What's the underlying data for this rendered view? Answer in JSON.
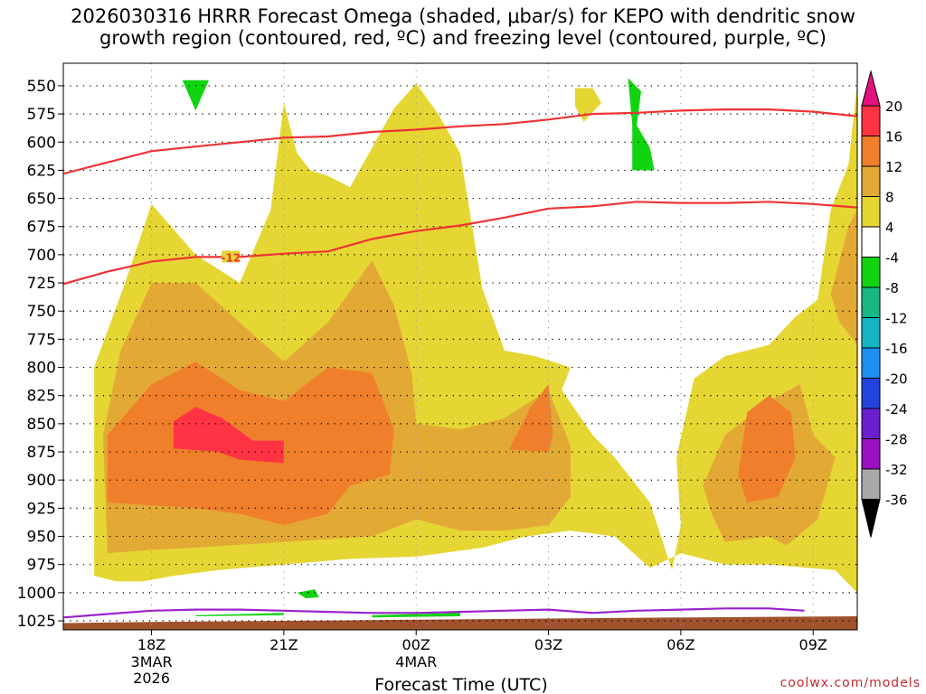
{
  "chart_data": {
    "type": "heatmap",
    "title_line1": "2026030316 HRRR Forecast Omega (shaded, μbar/s) for KEPO with dendritic snow",
    "title_line2": "growth region (contoured, red, ºC) and freezing level (contoured, purple, ºC)",
    "xlabel": "Forecast Time (UTC)",
    "credit": "coolwx.com/models",
    "x_range_hours": [
      -2.0,
      16.0
    ],
    "x_ticks": [
      {
        "hour": 0,
        "label": "18Z",
        "sub": [
          "3MAR",
          "2026"
        ]
      },
      {
        "hour": 3,
        "label": "21Z",
        "sub": []
      },
      {
        "hour": 6,
        "label": "00Z",
        "sub": [
          "4MAR"
        ]
      },
      {
        "hour": 9,
        "label": "03Z",
        "sub": []
      },
      {
        "hour": 12,
        "label": "06Z",
        "sub": []
      },
      {
        "hour": 15,
        "label": "09Z",
        "sub": []
      }
    ],
    "y_scale": "pressure (hPa), top 530 to bottom 1033",
    "y_range_hpa": [
      530,
      1033
    ],
    "y_ticks": [
      550,
      575,
      600,
      625,
      650,
      675,
      700,
      725,
      750,
      775,
      800,
      825,
      850,
      875,
      900,
      925,
      950,
      975,
      1000,
      1025
    ],
    "colorbar": {
      "labels": [
        "20",
        "16",
        "12",
        "8",
        "4",
        "-4",
        "-8",
        "-12",
        "-16",
        "-20",
        "-24",
        "-28",
        "-32",
        "-36"
      ],
      "bins": [
        {
          "color": "#ff3344"
        },
        {
          "color": "#f07f2c"
        },
        {
          "color": "#e3a935"
        },
        {
          "color": "#e6d634"
        },
        {
          "color": "#ffffff"
        },
        {
          "color": "#11d411"
        },
        {
          "color": "#17b884"
        },
        {
          "color": "#14b4c4"
        },
        {
          "color": "#1e8ff0"
        },
        {
          "color": "#2244dd"
        },
        {
          "color": "#6a1fd0"
        },
        {
          "color": "#9b10c0"
        },
        {
          "color": "#a9a9a9"
        }
      ],
      "top_arrow_color": "#e3117e",
      "bottom_arrow_color": "#000000"
    },
    "contours": {
      "dendritic_growth": {
        "color": "#ee3333",
        "label": "-12",
        "upper": [
          [
            -2,
            628
          ],
          [
            -1,
            618
          ],
          [
            0,
            608
          ],
          [
            1,
            604
          ],
          [
            2,
            600
          ],
          [
            3,
            596
          ],
          [
            4,
            595
          ],
          [
            5,
            591
          ],
          [
            6,
            589
          ],
          [
            7,
            586
          ],
          [
            8,
            584
          ],
          [
            9,
            580
          ],
          [
            10,
            575
          ],
          [
            11,
            574
          ],
          [
            12,
            572
          ],
          [
            13,
            571
          ],
          [
            14,
            571
          ],
          [
            15,
            573
          ],
          [
            16,
            577
          ]
        ],
        "lower": [
          [
            -2,
            726
          ],
          [
            -1,
            715
          ],
          [
            0,
            706
          ],
          [
            1,
            702
          ],
          [
            2,
            702
          ],
          [
            3,
            699
          ],
          [
            4,
            697
          ],
          [
            5,
            686
          ],
          [
            6,
            679
          ],
          [
            7,
            674
          ],
          [
            8,
            667
          ],
          [
            9,
            659
          ],
          [
            10,
            657
          ],
          [
            11,
            653
          ],
          [
            12,
            654
          ],
          [
            13,
            654
          ],
          [
            14,
            653
          ],
          [
            15,
            655
          ],
          [
            16,
            658
          ]
        ]
      },
      "freezing_level": {
        "color": "#9922cc",
        "points": [
          [
            -2,
            1022
          ],
          [
            -1,
            1019
          ],
          [
            0,
            1016
          ],
          [
            1,
            1015
          ],
          [
            2,
            1015
          ],
          [
            3,
            1016
          ],
          [
            4,
            1017
          ],
          [
            5,
            1018
          ],
          [
            6,
            1018
          ],
          [
            7,
            1017
          ],
          [
            8,
            1016
          ],
          [
            9,
            1015
          ],
          [
            10,
            1018
          ],
          [
            11,
            1016
          ],
          [
            12,
            1015
          ],
          [
            13,
            1014
          ],
          [
            14,
            1014
          ],
          [
            14.8,
            1016
          ]
        ]
      }
    },
    "omega_regions": [
      {
        "bin": 3,
        "points": [
          [
            -1.3,
            985
          ],
          [
            -1.3,
            800
          ],
          [
            -0.6,
            725
          ],
          [
            0,
            655
          ],
          [
            1,
            700
          ],
          [
            2,
            725
          ],
          [
            2.7,
            660
          ],
          [
            3,
            565
          ],
          [
            3.3,
            610
          ],
          [
            3.6,
            625
          ],
          [
            4,
            630
          ],
          [
            4.5,
            640
          ],
          [
            5,
            605
          ],
          [
            5.5,
            570
          ],
          [
            6,
            548
          ],
          [
            6.5,
            575
          ],
          [
            7,
            610
          ],
          [
            7.5,
            730
          ],
          [
            8,
            785
          ],
          [
            8.7,
            790
          ],
          [
            9.5,
            800
          ],
          [
            9.3,
            820
          ],
          [
            10,
            860
          ],
          [
            10.5,
            880
          ],
          [
            11.3,
            920
          ],
          [
            11.8,
            980
          ],
          [
            12,
            940
          ],
          [
            11.9,
            880
          ],
          [
            12.3,
            810
          ],
          [
            13,
            790
          ],
          [
            14,
            780
          ],
          [
            14.6,
            755
          ],
          [
            15.1,
            740
          ],
          [
            15.4,
            660
          ],
          [
            15.8,
            620
          ],
          [
            16,
            548
          ],
          [
            16,
            1000
          ],
          [
            15.5,
            980
          ],
          [
            14,
            975
          ],
          [
            13,
            975
          ],
          [
            12,
            965
          ],
          [
            11.3,
            978
          ],
          [
            10.5,
            950
          ],
          [
            9.5,
            945
          ],
          [
            8.5,
            950
          ],
          [
            7.5,
            960
          ],
          [
            6,
            968
          ],
          [
            4.5,
            970
          ],
          [
            3,
            975
          ],
          [
            1.5,
            980
          ],
          [
            0.5,
            985
          ],
          [
            -0.2,
            990
          ],
          [
            -0.8,
            990
          ]
        ]
      },
      {
        "bin": 3,
        "points": [
          [
            9.6,
            552
          ],
          [
            10.0,
            552
          ],
          [
            10.2,
            565
          ],
          [
            9.8,
            582
          ],
          [
            9.6,
            568
          ]
        ]
      },
      {
        "bin": 2,
        "points": [
          [
            -1,
            965
          ],
          [
            -1.1,
            860
          ],
          [
            -0.7,
            785
          ],
          [
            0,
            725
          ],
          [
            1,
            725
          ],
          [
            2,
            760
          ],
          [
            3,
            795
          ],
          [
            4,
            760
          ],
          [
            5,
            705
          ],
          [
            5.5,
            745
          ],
          [
            5.9,
            805
          ],
          [
            6,
            850
          ],
          [
            7,
            855
          ],
          [
            8,
            845
          ],
          [
            9,
            820
          ],
          [
            9.5,
            870
          ],
          [
            9.5,
            915
          ],
          [
            9,
            940
          ],
          [
            8,
            945
          ],
          [
            7,
            945
          ],
          [
            6,
            935
          ],
          [
            5,
            950
          ],
          [
            3,
            955
          ],
          [
            1,
            960
          ],
          [
            0,
            962
          ]
        ]
      },
      {
        "bin": 2,
        "points": [
          [
            12.5,
            905
          ],
          [
            13,
            860
          ],
          [
            14,
            830
          ],
          [
            14.7,
            815
          ],
          [
            15,
            860
          ],
          [
            15.5,
            880
          ],
          [
            15.1,
            935
          ],
          [
            14.4,
            958
          ],
          [
            14,
            950
          ],
          [
            13,
            955
          ],
          [
            12.7,
            930
          ]
        ]
      },
      {
        "bin": 2,
        "points": [
          [
            15.4,
            735
          ],
          [
            15.8,
            675
          ],
          [
            16,
            660
          ],
          [
            16,
            780
          ],
          [
            15.6,
            760
          ]
        ]
      },
      {
        "bin": 1,
        "points": [
          [
            -1,
            920
          ],
          [
            -1,
            860
          ],
          [
            0,
            815
          ],
          [
            1,
            795
          ],
          [
            2,
            820
          ],
          [
            3,
            830
          ],
          [
            4,
            800
          ],
          [
            5,
            805
          ],
          [
            5.5,
            855
          ],
          [
            5.4,
            895
          ],
          [
            4.5,
            905
          ],
          [
            4,
            930
          ],
          [
            3,
            940
          ],
          [
            2,
            930
          ],
          [
            1,
            925
          ]
        ]
      },
      {
        "bin": 1,
        "points": [
          [
            8.1,
            873
          ],
          [
            8.6,
            835
          ],
          [
            9,
            815
          ],
          [
            9.1,
            860
          ],
          [
            9.0,
            875
          ]
        ]
      },
      {
        "bin": 1,
        "points": [
          [
            13.3,
            895
          ],
          [
            13.5,
            840
          ],
          [
            14,
            825
          ],
          [
            14.5,
            840
          ],
          [
            14.6,
            880
          ],
          [
            14.2,
            915
          ],
          [
            13.5,
            920
          ]
        ]
      },
      {
        "bin": 0,
        "points": [
          [
            0.5,
            872
          ],
          [
            0.5,
            848
          ],
          [
            1,
            835
          ],
          [
            1.6,
            845
          ],
          [
            2.3,
            865
          ],
          [
            3,
            865
          ],
          [
            3,
            885
          ],
          [
            2,
            882
          ],
          [
            1.5,
            875
          ]
        ]
      },
      {
        "bin": 5,
        "points": [
          [
            0.7,
            545
          ],
          [
            1.3,
            545
          ],
          [
            1.0,
            572
          ]
        ]
      },
      {
        "bin": 5,
        "points": [
          [
            10.8,
            543
          ],
          [
            11.1,
            555
          ],
          [
            11.0,
            585
          ],
          [
            11.3,
            605
          ],
          [
            11.4,
            625
          ],
          [
            10.9,
            625
          ],
          [
            10.9,
            585
          ]
        ]
      },
      {
        "bin": 5,
        "points": [
          [
            3.3,
            1000
          ],
          [
            3.7,
            997
          ],
          [
            3.8,
            1004
          ],
          [
            3.5,
            1005
          ]
        ]
      },
      {
        "bin": 5,
        "points": [
          [
            1.0,
            1020
          ],
          [
            3.0,
            1018
          ],
          [
            3.0,
            1020
          ],
          [
            1.0,
            1021
          ]
        ]
      },
      {
        "bin": 5,
        "points": [
          [
            5.0,
            1020
          ],
          [
            7.0,
            1018
          ],
          [
            7.0,
            1021
          ],
          [
            5.0,
            1022
          ]
        ]
      }
    ],
    "terrain": {
      "color": "#a0522d",
      "points": [
        [
          -2,
          1033
        ],
        [
          -2,
          1027
        ],
        [
          0,
          1026
        ],
        [
          3,
          1025
        ],
        [
          6,
          1024
        ],
        [
          9,
          1023
        ],
        [
          12,
          1022
        ],
        [
          16,
          1021
        ],
        [
          16,
          1033
        ]
      ]
    }
  }
}
